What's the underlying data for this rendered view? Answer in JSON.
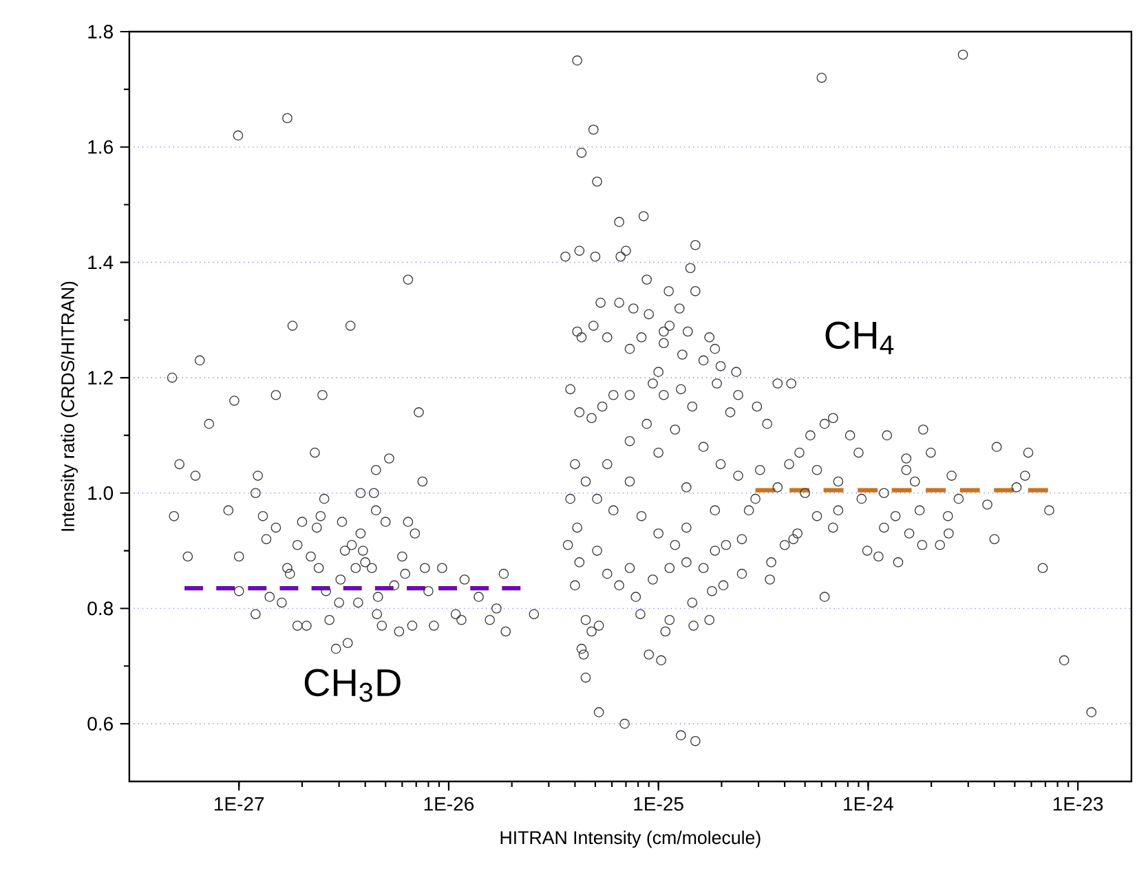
{
  "chart_data": {
    "type": "scatter",
    "xlabel": "HITRAN Intensity (cm/molecule)",
    "ylabel": "Intensity ratio (CRDS/HITRAN)",
    "log": "x",
    "grid": "y",
    "xlim": [
      3e-28,
      1.8e-23
    ],
    "ylim": [
      0.5,
      1.8
    ],
    "xticks": [
      {
        "value": 1e-27,
        "label": "1E-27"
      },
      {
        "value": 1e-26,
        "label": "1E-26"
      },
      {
        "value": 1e-25,
        "label": "1E-25"
      },
      {
        "value": 1e-24,
        "label": "1E-24"
      },
      {
        "value": 1e-23,
        "label": "1E-23"
      }
    ],
    "yticks": [
      {
        "value": 0.6,
        "label": "0.6"
      },
      {
        "value": 0.8,
        "label": "0.8"
      },
      {
        "value": 1.0,
        "label": "1.0"
      },
      {
        "value": 1.2,
        "label": "1.2"
      },
      {
        "value": 1.4,
        "label": "1.4"
      },
      {
        "value": 1.6,
        "label": "1.6"
      },
      {
        "value": 1.8,
        "label": "1.8"
      }
    ],
    "annotations": [
      "CH$_{3}$D",
      "CH$_{4}$"
    ],
    "series": [
      {
        "color": "#3a3a3a",
        "marker": "circle",
        "x": [
          4.8e-28,
          4.9e-28,
          5.2e-28,
          5.7e-28,
          6.2e-28,
          6.5e-28,
          7.2e-28,
          8.9e-28,
          9.5e-28,
          9.9e-28,
          1e-27,
          1e-27,
          1.2e-27,
          1.23e-27,
          1.2e-27,
          1.3e-27,
          1.35e-27,
          1.4e-27,
          1.5e-27,
          1.5e-27,
          1.6e-27,
          1.7e-27,
          1.7e-27,
          1.75e-27,
          1.8e-27,
          1.9e-27,
          1.9e-27,
          2e-27,
          2.1e-27,
          2.2e-27,
          2.3e-27,
          2.35e-27,
          2.4e-27,
          2.45e-27,
          2.5e-27,
          2.55e-27,
          2.6e-27,
          2.7e-27,
          2.9e-27,
          3e-27,
          3.05e-27,
          3.1e-27,
          3.2e-27,
          3.3e-27,
          3.4e-27,
          3.45e-27,
          3.6e-27,
          3.7e-27,
          3.8e-27,
          3.8e-27,
          3.9e-27,
          4e-27,
          4.3e-27,
          4.4e-27,
          4.5e-27,
          4.5e-27,
          4.55e-27,
          4.6e-27,
          4.8e-27,
          5e-27,
          5.2e-27,
          5.5e-27,
          5.8e-27,
          6e-27,
          6.2e-27,
          6.4e-27,
          6.4e-27,
          6.7e-27,
          6.9e-27,
          7.2e-27,
          7.5e-27,
          7.7e-27,
          8e-27,
          8.5e-27,
          9.3e-27,
          1.08e-26,
          1.15e-26,
          1.19e-26,
          1.39e-26,
          1.57e-26,
          1.69e-26,
          1.83e-26,
          1.87e-26,
          2.55e-26,
          4.1e-26,
          4.9e-26,
          4.3e-26,
          5.1e-26,
          6.5e-26,
          8.5e-26,
          3.6e-26,
          4.2e-26,
          5e-26,
          6.6e-26,
          7e-26,
          1.5e-25,
          1.42e-25,
          8.8e-26,
          1.5e-25,
          1.12e-25,
          5.3e-26,
          6.5e-26,
          7.6e-26,
          1.26e-25,
          9e-26,
          4.1e-26,
          4.3e-26,
          4.9e-26,
          1.13e-25,
          1.06e-25,
          1.38e-25,
          1.75e-25,
          1.86e-25,
          2.35e-25,
          3.7e-25,
          4.3e-25,
          6e-25,
          2.83e-24,
          3.7e-26,
          4e-26,
          4.5e-26,
          5.2e-26,
          4.8e-26,
          4.3e-26,
          4.4e-26,
          4.5e-26,
          5.2e-26,
          6.9e-26,
          9e-26,
          1.03e-25,
          8.2e-26,
          1.08e-25,
          1.13e-25,
          1.45e-25,
          1.47e-25,
          1.75e-25,
          1.28e-25,
          1.5e-25,
          6.2e-25,
          3.4e-25,
          2.5e-25,
          2.04e-25,
          1.8e-25,
          8.6e-24,
          1.16e-23,
          6.8e-24,
          7.3e-24,
          4e-24,
          3.7e-24,
          4.1e-24,
          5.8e-24,
          5.6e-24,
          5.1e-24,
          1.39e-24,
          1.12e-24,
          9.9e-25,
          1.19e-24,
          2.4e-24,
          1.81e-24,
          2.2e-24,
          2.42e-24,
          2.7e-24,
          1.76e-24,
          1.57e-24,
          1.35e-24,
          8.2e-25,
          6.8e-25,
          6.2e-25,
          1.23e-24,
          1.83e-24,
          1.99e-24,
          1.52e-24,
          1.67e-24,
          2.5e-24,
          9e-25,
          5.3e-25,
          5e-25,
          5.7e-25,
          6.8e-25,
          7.2e-25,
          4.4e-25,
          4e-25,
          4.6e-25,
          3.45e-25,
          3.3e-25,
          2.95e-25,
          3.05e-25,
          2.7e-25,
          2.4e-25,
          2.2e-25,
          1.9e-25,
          1.98e-25,
          1.64e-25,
          1.3e-25,
          1.06e-25,
          8.3e-26,
          7.3e-26,
          5.7e-26,
          1e-25,
          9.4e-26,
          7.3e-26,
          6.1e-26,
          5.4e-26,
          4.8e-26,
          4.2e-26,
          3.8e-26,
          4e-26,
          3.8e-26,
          4.1e-26,
          4.2e-26,
          5.1e-26,
          5.7e-26,
          6.5e-26,
          7.3e-26,
          7.8e-26,
          9.4e-26,
          1.13e-25,
          1.36e-25,
          1.64e-25,
          1.86e-25,
          2.1e-25,
          2.5e-25,
          1.36e-25,
          1.2e-25,
          1e-25,
          8.3e-26,
          6.1e-26,
          5.1e-26,
          4.5e-26,
          5.7e-26,
          7.3e-26,
          8.8e-26,
          1.2e-25,
          1.45e-25,
          1.64e-25,
          1.98e-25,
          2.4e-25,
          2.9e-25,
          3.7e-25,
          4.2e-25,
          4.7e-25,
          5.7e-25,
          7.2e-25,
          9.3e-25,
          1.19e-24,
          1.52e-24,
          7.3e-26,
          1e-25,
          1.36e-25,
          1.86e-25,
          1.06e-25,
          1.28e-25
        ],
        "values": [
          1.2,
          0.96,
          1.05,
          0.89,
          1.03,
          1.23,
          1.12,
          0.97,
          1.16,
          1.62,
          0.89,
          0.83,
          1.0,
          1.03,
          0.79,
          0.96,
          0.92,
          0.82,
          1.17,
          0.94,
          0.81,
          1.65,
          0.87,
          0.86,
          1.29,
          0.91,
          0.77,
          0.95,
          0.77,
          0.89,
          1.07,
          0.94,
          0.87,
          0.96,
          1.17,
          0.99,
          0.83,
          0.78,
          0.73,
          0.81,
          0.85,
          0.95,
          0.9,
          0.74,
          1.29,
          0.91,
          0.87,
          0.81,
          1.0,
          0.93,
          0.9,
          0.88,
          0.87,
          1.0,
          1.04,
          0.97,
          0.79,
          0.82,
          0.77,
          0.95,
          1.06,
          0.84,
          0.76,
          0.89,
          0.86,
          0.95,
          1.37,
          0.77,
          0.93,
          1.14,
          1.02,
          0.87,
          0.83,
          0.77,
          0.87,
          0.79,
          0.78,
          0.85,
          0.82,
          0.78,
          0.8,
          0.86,
          0.76,
          0.79,
          1.75,
          1.63,
          1.59,
          1.54,
          1.47,
          1.48,
          1.41,
          1.42,
          1.41,
          1.41,
          1.42,
          1.43,
          1.39,
          1.37,
          1.35,
          1.35,
          1.33,
          1.33,
          1.32,
          1.32,
          1.31,
          1.28,
          1.27,
          1.29,
          1.29,
          1.28,
          1.28,
          1.27,
          1.25,
          1.21,
          1.19,
          1.19,
          1.72,
          1.76,
          0.91,
          0.84,
          0.78,
          0.77,
          0.76,
          0.73,
          0.72,
          0.68,
          0.62,
          0.6,
          0.72,
          0.71,
          0.79,
          0.76,
          0.78,
          0.81,
          0.77,
          0.78,
          0.58,
          0.57,
          0.82,
          0.85,
          0.86,
          0.84,
          0.83,
          0.71,
          0.62,
          0.87,
          0.97,
          0.92,
          0.98,
          1.08,
          1.07,
          1.03,
          1.01,
          0.88,
          0.89,
          0.9,
          0.94,
          0.96,
          0.91,
          0.91,
          0.93,
          0.99,
          0.97,
          0.93,
          0.96,
          1.1,
          1.13,
          1.12,
          1.1,
          1.11,
          1.07,
          1.06,
          1.02,
          1.03,
          1.07,
          1.1,
          1.0,
          0.96,
          0.94,
          0.97,
          0.92,
          0.91,
          0.93,
          0.88,
          1.12,
          1.15,
          1.04,
          0.97,
          1.17,
          1.14,
          1.19,
          1.22,
          1.23,
          1.24,
          1.26,
          1.27,
          1.25,
          1.27,
          1.21,
          1.19,
          1.17,
          1.17,
          1.15,
          1.13,
          1.14,
          1.18,
          1.05,
          0.99,
          0.94,
          0.88,
          0.9,
          0.86,
          0.84,
          0.87,
          0.82,
          0.85,
          0.87,
          0.88,
          0.87,
          0.9,
          0.91,
          0.92,
          0.94,
          0.91,
          0.93,
          0.96,
          0.97,
          0.99,
          1.02,
          1.05,
          1.09,
          1.12,
          1.11,
          1.15,
          1.08,
          1.05,
          1.03,
          0.99,
          1.01,
          1.05,
          1.07,
          1.04,
          1.02,
          0.99,
          1.0,
          1.04,
          1.02,
          1.07,
          1.01,
          0.97,
          1.17,
          1.18
        ]
      },
      {
        "type": "line",
        "color": "#6a0dad",
        "line_style": "dashed",
        "x": [
          5.5e-28,
          2.2e-26
        ],
        "values": [
          0.835,
          0.835
        ]
      },
      {
        "type": "line",
        "color": "#c8741c",
        "line_style": "dashed",
        "x": [
          2.9e-25,
          7.2e-24
        ],
        "values": [
          1.005,
          1.005
        ]
      }
    ]
  }
}
